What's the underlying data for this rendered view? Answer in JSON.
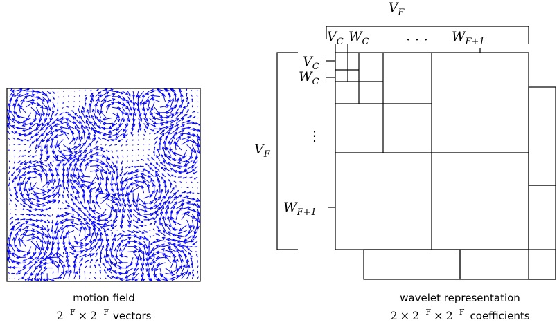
{
  "motion_field": {
    "caption": "motion field",
    "formula": {
      "base1": "2",
      "exp1": "−F",
      "times": "×",
      "base2": "2",
      "exp2": "−F",
      "unit": "vectors"
    },
    "arrow_color": "#0000ff"
  },
  "wavelet": {
    "caption": "wavelet representation",
    "formula": {
      "factor": "2",
      "times1": "×",
      "base1": "2",
      "exp1": "−F",
      "times2": "×",
      "base2": "2",
      "exp2": "−F",
      "unit": "coefficients"
    }
  },
  "labels": {
    "top_span": {
      "base": "V",
      "sub": "F"
    },
    "top_vc": {
      "base": "V",
      "sub": "C"
    },
    "top_wc": {
      "base": "W",
      "sub": "C"
    },
    "top_dots": "· · ·",
    "top_wf1": {
      "base": "W",
      "sub": "F+1"
    },
    "left_span": {
      "base": "V",
      "sub": "F"
    },
    "left_vc": {
      "base": "V",
      "sub": "C"
    },
    "left_wc": {
      "base": "W",
      "sub": "C"
    },
    "left_dots": "⋮",
    "left_wf1": {
      "base": "W",
      "sub": "F+1"
    }
  }
}
